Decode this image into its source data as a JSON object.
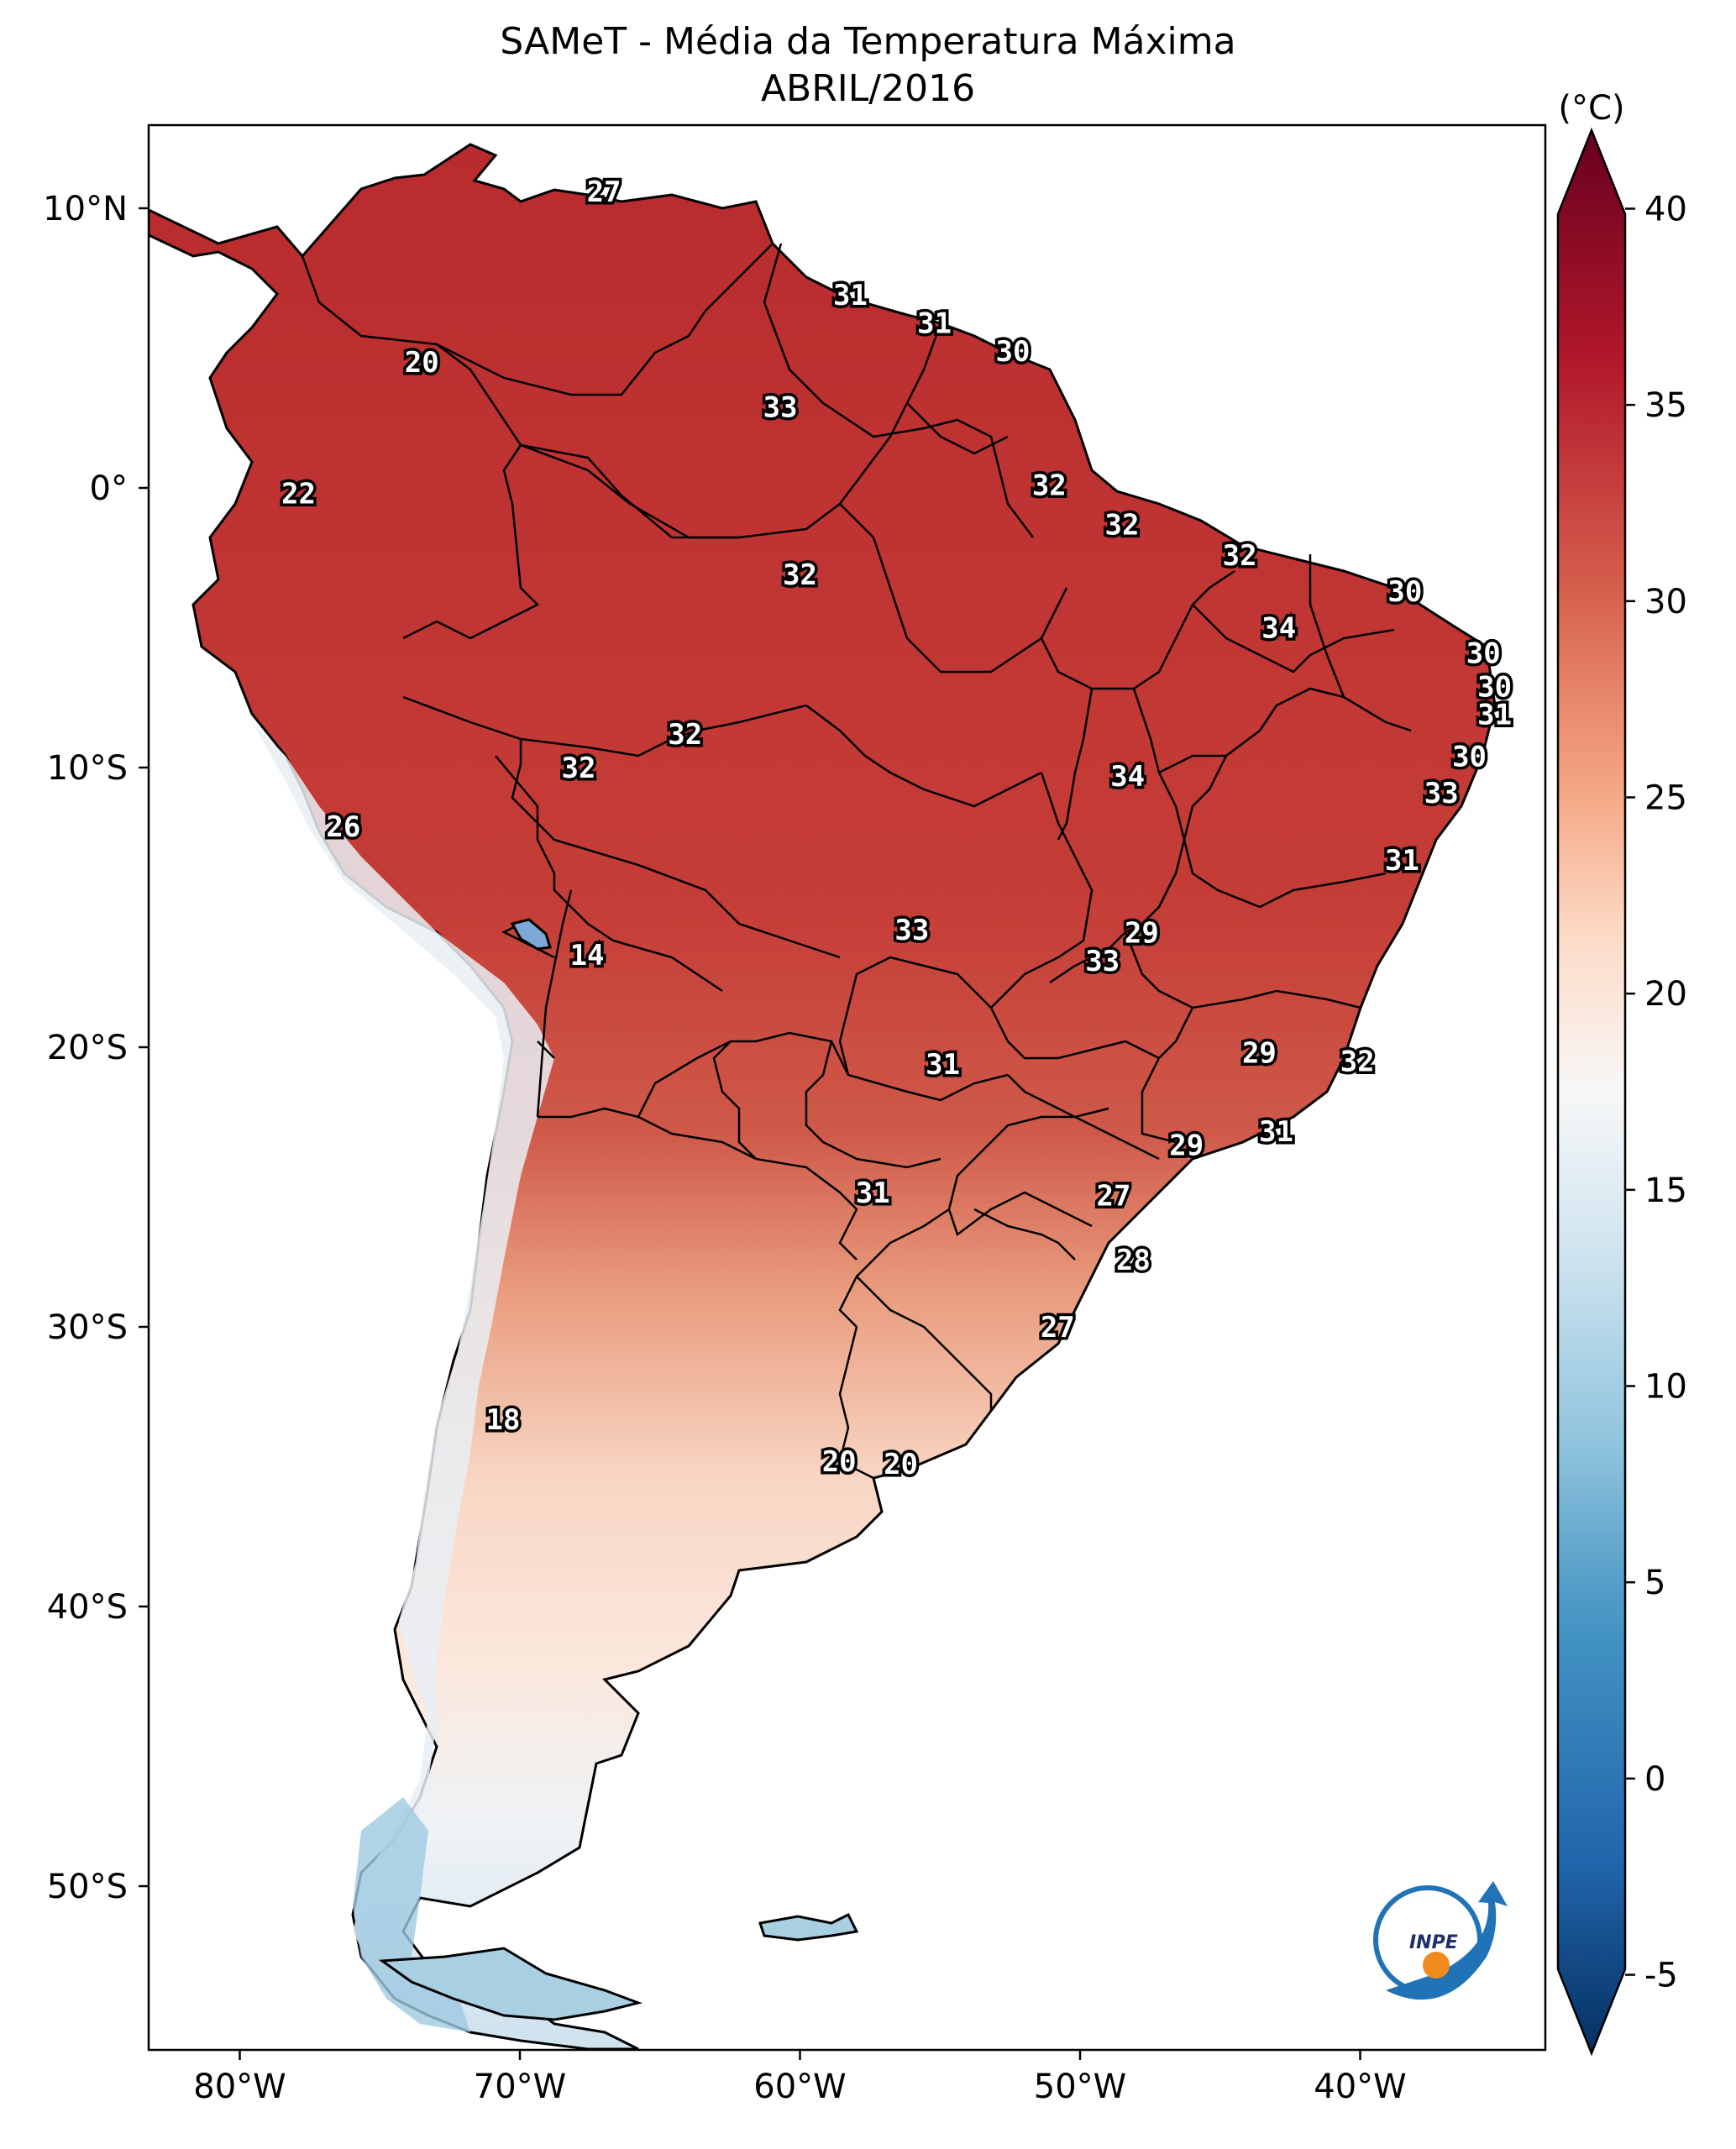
{
  "title": "SAMeT - Média da Temperatura Máxima",
  "subtitle": "ABRIL/2016",
  "colorbar": {
    "unit": "(°C)",
    "ticks": [
      "40",
      "35",
      "30",
      "25",
      "20",
      "15",
      "10",
      "5",
      "0",
      "-5"
    ],
    "range": [
      -7,
      42
    ],
    "colormap": [
      "#053061",
      "#2166ac",
      "#4393c3",
      "#92c5de",
      "#d1e5f0",
      "#f7f7f7",
      "#fddbc7",
      "#f4a582",
      "#d6604d",
      "#b2182b",
      "#67001f"
    ]
  },
  "axes": {
    "lon_ticks": [
      "80°W",
      "70°W",
      "60°W",
      "50°W",
      "40°W"
    ],
    "lat_ticks": [
      "10°N",
      "0°",
      "10°S",
      "20°S",
      "30°S",
      "40°S",
      "50°S"
    ]
  },
  "logo": {
    "text": "INPE"
  },
  "labels": [
    {
      "text": "27",
      "lon": -67,
      "lat": 10.6
    },
    {
      "text": "20",
      "lon": -73.5,
      "lat": 4.5
    },
    {
      "text": "31",
      "lon": -58.2,
      "lat": 6.9
    },
    {
      "text": "31",
      "lon": -55.2,
      "lat": 5.9
    },
    {
      "text": "30",
      "lon": -52.4,
      "lat": 4.9
    },
    {
      "text": "33",
      "lon": -60.7,
      "lat": 2.9
    },
    {
      "text": "22",
      "lon": -77.9,
      "lat": -0.2
    },
    {
      "text": "32",
      "lon": -51.1,
      "lat": 0.1
    },
    {
      "text": "32",
      "lon": -48.5,
      "lat": -1.3
    },
    {
      "text": "32",
      "lon": -60,
      "lat": -3.1
    },
    {
      "text": "32",
      "lon": -44.3,
      "lat": -2.4
    },
    {
      "text": "30",
      "lon": -38.4,
      "lat": -3.7
    },
    {
      "text": "34",
      "lon": -42.9,
      "lat": -5.0
    },
    {
      "text": "30",
      "lon": -35.6,
      "lat": -5.9
    },
    {
      "text": "30",
      "lon": -35.2,
      "lat": -7.1
    },
    {
      "text": "31",
      "lon": -35.2,
      "lat": -8.1
    },
    {
      "text": "32",
      "lon": -64.1,
      "lat": -8.8
    },
    {
      "text": "32",
      "lon": -67.9,
      "lat": -10.0
    },
    {
      "text": "30",
      "lon": -36.1,
      "lat": -9.6
    },
    {
      "text": "34",
      "lon": -48.3,
      "lat": -10.3
    },
    {
      "text": "33",
      "lon": -37.1,
      "lat": -10.9
    },
    {
      "text": "26",
      "lon": -76.3,
      "lat": -12.1
    },
    {
      "text": "31",
      "lon": -38.5,
      "lat": -13.3
    },
    {
      "text": "33",
      "lon": -56,
      "lat": -15.8
    },
    {
      "text": "29",
      "lon": -47.8,
      "lat": -15.9
    },
    {
      "text": "33",
      "lon": -49.2,
      "lat": -16.9
    },
    {
      "text": "14",
      "lon": -67.6,
      "lat": -16.7
    },
    {
      "text": "29",
      "lon": -43.6,
      "lat": -20.2
    },
    {
      "text": "32",
      "lon": -40.1,
      "lat": -20.5
    },
    {
      "text": "31",
      "lon": -54.9,
      "lat": -20.6
    },
    {
      "text": "31",
      "lon": -43,
      "lat": -23.0
    },
    {
      "text": "29",
      "lon": -46.2,
      "lat": -23.5
    },
    {
      "text": "31",
      "lon": -57.4,
      "lat": -25.2
    },
    {
      "text": "27",
      "lon": -48.8,
      "lat": -25.3
    },
    {
      "text": "28",
      "lon": -48.1,
      "lat": -27.6
    },
    {
      "text": "27",
      "lon": -50.8,
      "lat": -30.0
    },
    {
      "text": "18",
      "lon": -70.6,
      "lat": -33.3
    },
    {
      "text": "20",
      "lon": -58.6,
      "lat": -34.8
    },
    {
      "text": "20",
      "lon": -56.4,
      "lat": -34.9
    }
  ]
}
